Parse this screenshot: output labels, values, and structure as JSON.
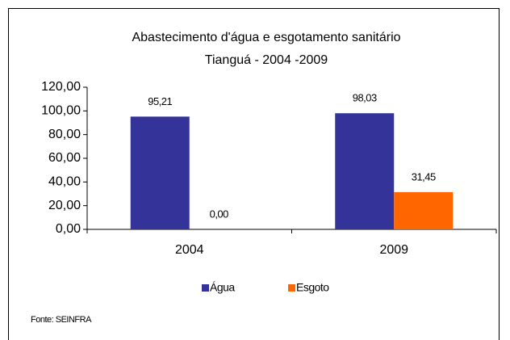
{
  "chart_data": {
    "type": "bar",
    "title": "Abastecimento d'água e esgotamento sanitário",
    "subtitle": "Tianguá  - 2004 -2009",
    "categories": [
      "2004",
      "2009"
    ],
    "series": [
      {
        "name": "Água",
        "color": "#333399",
        "values": [
          95.21,
          98.03
        ],
        "value_labels": [
          "95,21",
          "98,03"
        ]
      },
      {
        "name": "Esgoto",
        "color": "#ff6600",
        "values": [
          0,
          31.45
        ],
        "value_labels": [
          "0,00",
          "31,45"
        ]
      }
    ],
    "ylim": [
      0,
      120
    ],
    "yticks": [
      {
        "value": 0,
        "label": "0,00"
      },
      {
        "value": 20,
        "label": "20,00"
      },
      {
        "value": 40,
        "label": "40,00"
      },
      {
        "value": 60,
        "label": "60,00"
      },
      {
        "value": 80,
        "label": "80,00"
      },
      {
        "value": 100,
        "label": "100,00"
      },
      {
        "value": 120,
        "label": "120,00"
      }
    ],
    "grid": false,
    "legend": "bottom",
    "source": "Fonte: SEINFRA"
  }
}
